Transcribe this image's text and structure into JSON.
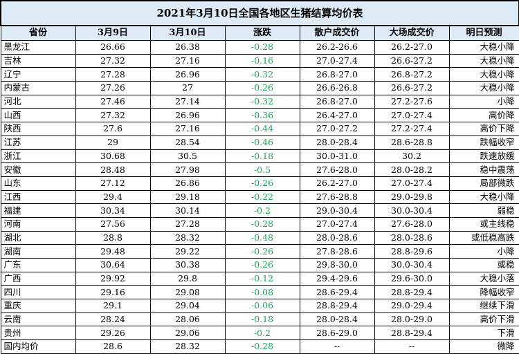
{
  "title": "2021年3月10日全国各地区生猪结算均价表",
  "headers": [
    "省份",
    "3月9日",
    "3月10日",
    "涨跌",
    "散户成交价",
    "大场成交价",
    "明日预测"
  ],
  "rows": [
    [
      "黑龙江",
      "26.66",
      "26.38",
      "-0.28",
      "26.2-26.6",
      "26.2-27.0",
      "大稳小降"
    ],
    [
      "吉林",
      "27.32",
      "27.16",
      "-0.16",
      "27.0-27.4",
      "26.6-27.2",
      "大稳小降"
    ],
    [
      "辽宁",
      "27.28",
      "26.96",
      "-0.32",
      "26.8-27.0",
      "26.8-27.2",
      "大稳小降"
    ],
    [
      "内蒙古",
      "27.26",
      "27",
      "-0.26",
      "26.6-26.8",
      "26.6-27.2",
      "大稳小降"
    ],
    [
      "河北",
      "27.46",
      "27.14",
      "-0.32",
      "26.8-27.0",
      "27.2-27.6",
      "小降"
    ],
    [
      "山西",
      "27.32",
      "26.96",
      "-0.36",
      "26.4-27.0",
      "27.0-27.4",
      "高价降"
    ],
    [
      "陕西",
      "27.6",
      "27.16",
      "-0.44",
      "27.0-27.2",
      "27.2-27.4",
      "高价下降"
    ],
    [
      "江苏",
      "29",
      "28.54",
      "-0.46",
      "28.0-28.4",
      "28.6-28.8",
      "跌幅收窄"
    ],
    [
      "浙江",
      "30.68",
      "30.5",
      "-0.18",
      "30.0-31.0",
      "30.2",
      "跌速放缓"
    ],
    [
      "安徽",
      "28.48",
      "27.98",
      "-0.5",
      "27.6-28.0",
      "28.0-28.2",
      "稳中震荡"
    ],
    [
      "山东",
      "27.12",
      "26.86",
      "-0.26",
      "26.2-27.0",
      "27.0-27.4",
      "局部微跌"
    ],
    [
      "江西",
      "29.4",
      "29.18",
      "-0.22",
      "27.6-28.8",
      "29.0-29.8",
      "大稳小降"
    ],
    [
      "福建",
      "30.34",
      "30.14",
      "-0.2",
      "29.0-30.4",
      "30.0-30.4",
      "弱稳"
    ],
    [
      "河南",
      "27.56",
      "27.28",
      "-0.28",
      "27.0-27.4",
      "27.6-28.0",
      "或主线稳"
    ],
    [
      "湖北",
      "28.8",
      "28.32",
      "-0.48",
      "28.0-28.6",
      "28.0-28.6",
      "或低稳高跌"
    ],
    [
      "湖南",
      "29.48",
      "29.22",
      "-0.26",
      "27.8-28.6",
      "28.8-29.6",
      "小降"
    ],
    [
      "广东",
      "30.64",
      "30.38",
      "-0.26",
      "29.8-30.0",
      "30.0-30.4",
      "或稳"
    ],
    [
      "广西",
      "29.92",
      "29.8",
      "-0.12",
      "29.4-29.6",
      "29.6-30.0",
      "大稳小落"
    ],
    [
      "四川",
      "29.16",
      "29.08",
      "-0.08",
      "28.6-29.4",
      "28.8-29.4",
      "降幅收窄"
    ],
    [
      "重庆",
      "29.1",
      "29.04",
      "-0.06",
      "28.8-29.4",
      "29.0-29.4",
      "继续下滑"
    ],
    [
      "云南",
      "28.24",
      "28.06",
      "-0.18",
      "28.0-28.4",
      "28.0-29.0",
      "高价下滑"
    ],
    [
      "贵州",
      "29.26",
      "29.06",
      "-0.2",
      "28.6-29.0",
      "28.8-29.4",
      "下滑"
    ],
    [
      "国内均价",
      "28.6",
      "28.32",
      "-0.28",
      "--",
      "--",
      "微降"
    ]
  ]
}
